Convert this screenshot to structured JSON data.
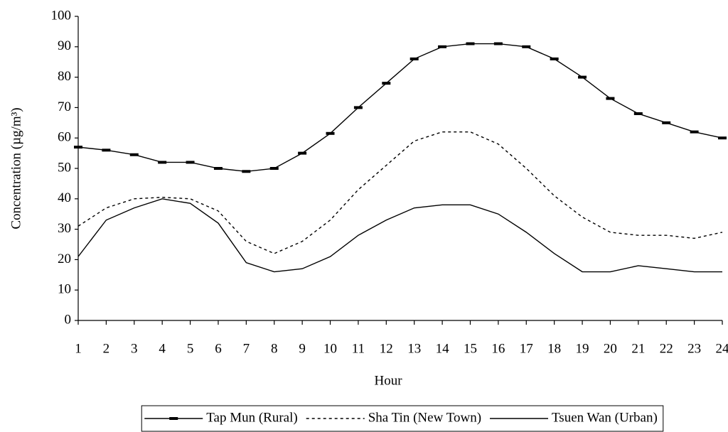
{
  "chart_data": {
    "type": "line",
    "x_label": "Hour",
    "y_label": "Concentration (µg/m³)",
    "x": [
      1,
      2,
      3,
      4,
      5,
      6,
      7,
      8,
      9,
      10,
      11,
      12,
      13,
      14,
      15,
      16,
      17,
      18,
      19,
      20,
      21,
      22,
      23,
      24
    ],
    "xlim": [
      1,
      24
    ],
    "xticks": [
      1,
      2,
      3,
      4,
      5,
      6,
      7,
      8,
      9,
      10,
      11,
      12,
      13,
      14,
      15,
      16,
      17,
      18,
      19,
      20,
      21,
      22,
      23,
      24
    ],
    "ylim": [
      0,
      100
    ],
    "yticks": [
      0,
      10,
      20,
      30,
      40,
      50,
      60,
      70,
      80,
      90,
      100
    ],
    "grid": false,
    "legend_position": "bottom",
    "series": [
      {
        "name": "Tap Mun (Rural)",
        "color": "#000000",
        "line_style": "solid",
        "marker": "dash",
        "values": [
          57,
          56,
          54.5,
          52,
          52,
          50,
          49,
          50,
          55,
          61.5,
          70,
          78,
          86,
          90,
          91,
          91,
          90,
          86,
          80,
          73,
          68,
          65,
          62,
          60
        ]
      },
      {
        "name": "Sha Tin (New Town)",
        "color": "#000000",
        "line_style": "dotted",
        "marker": null,
        "values": [
          31,
          37,
          40,
          40.5,
          40,
          36,
          26,
          22,
          26,
          33,
          43,
          51,
          59,
          62,
          62,
          58,
          50,
          41,
          34,
          29,
          28,
          28,
          27,
          29
        ]
      },
      {
        "name": "Tsuen Wan (Urban)",
        "color": "#000000",
        "line_style": "solid",
        "marker": null,
        "values": [
          21,
          33,
          37,
          40,
          38.5,
          32,
          19,
          16,
          17,
          21,
          28,
          33,
          37,
          38,
          38,
          35,
          29,
          22,
          16,
          16,
          18,
          17,
          16,
          16
        ]
      }
    ]
  }
}
